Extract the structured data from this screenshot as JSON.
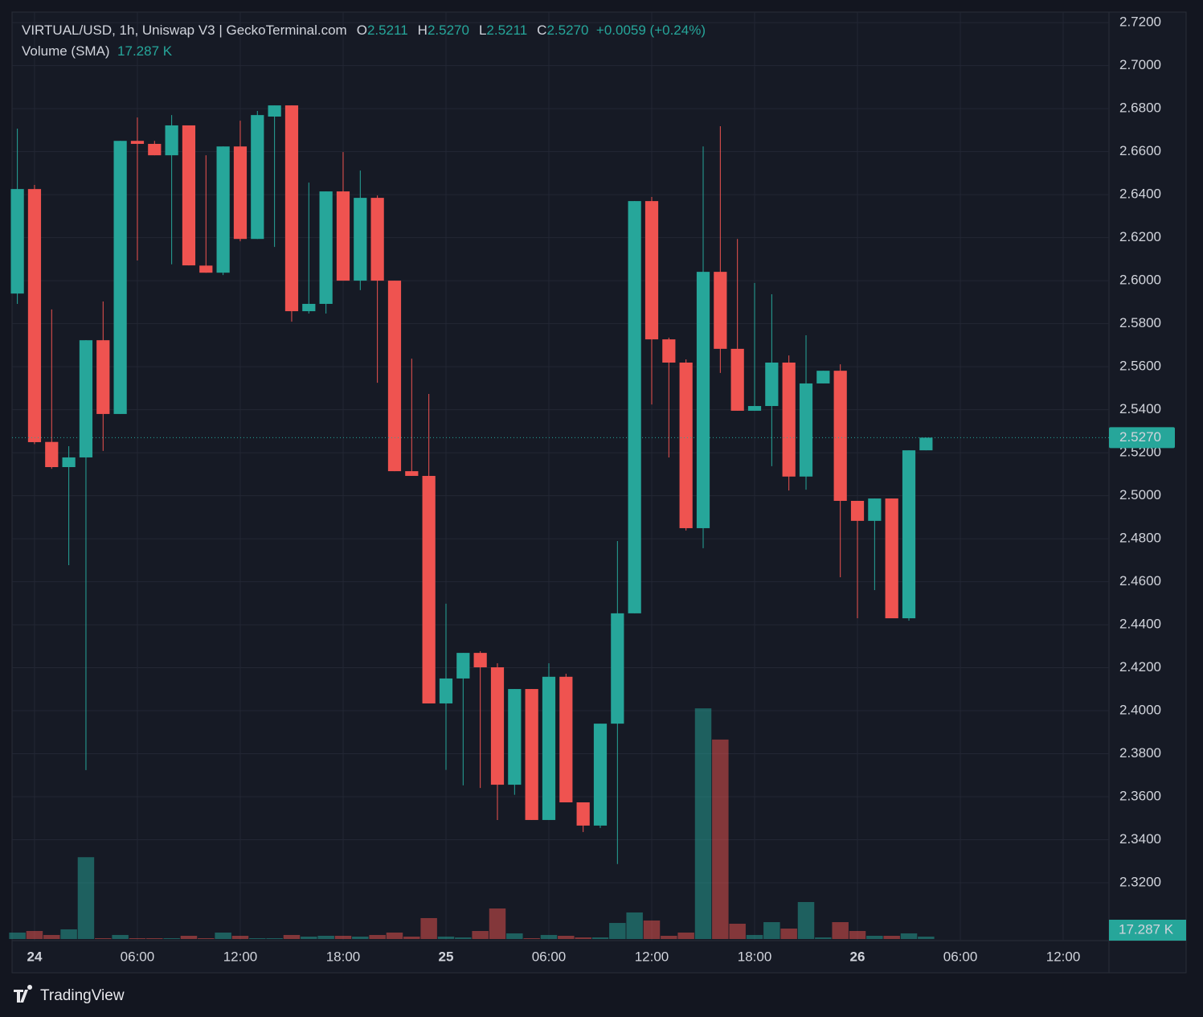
{
  "chart_data": {
    "type": "candlestick",
    "header": {
      "symbol": "VIRTUAL/USD, 1h, Uniswap V3 | GeckoTerminal.com",
      "ohlc": [
        {
          "key": "O",
          "value": "2.5211"
        },
        {
          "key": "H",
          "value": "2.5270"
        },
        {
          "key": "L",
          "value": "2.5211"
        },
        {
          "key": "C",
          "value": "2.5270"
        }
      ],
      "change": "+0.0059 (+0.24%)",
      "volume_title": "Volume (SMA)"
    },
    "brand": "TradingView",
    "up_color": "#26a69a",
    "down_color": "#ef5350",
    "x": [
      -1,
      0,
      1,
      2,
      3,
      4,
      5,
      6,
      7,
      8,
      9,
      10,
      11,
      12,
      13,
      14,
      15,
      16,
      17,
      18,
      19,
      20,
      21,
      22,
      23,
      24,
      25,
      26,
      27,
      28,
      29,
      30,
      31,
      32,
      33,
      34,
      35,
      36,
      37,
      38,
      39,
      40,
      41,
      42,
      43,
      44,
      45,
      46,
      47,
      48,
      49,
      50,
      51,
      52
    ],
    "open": [
      2.594,
      2.6426,
      2.525,
      2.5133,
      2.5178,
      2.5723,
      2.538,
      2.665,
      2.6636,
      2.6583,
      2.6722,
      2.607,
      2.6037,
      2.6624,
      2.6194,
      2.6763,
      2.6815,
      2.5858,
      2.5892,
      2.6415,
      2.6,
      2.6385,
      2.6,
      2.5114,
      2.5092,
      2.4034,
      2.415,
      2.4269,
      2.4202,
      2.3656,
      2.4101,
      2.3492,
      2.4158,
      2.3574,
      2.3466,
      2.394,
      2.4453,
      2.637,
      2.5727,
      2.5619,
      2.4849,
      2.6041,
      2.5683,
      2.5395,
      2.5417,
      2.5619,
      2.5089,
      2.5522,
      2.5581,
      2.4976,
      2.4883,
      2.4987,
      2.443,
      2.5211
    ],
    "high": [
      2.6707,
      2.6445,
      2.5866,
      2.523,
      2.5723,
      2.5903,
      2.665,
      2.6759,
      2.665,
      2.677,
      2.6722,
      2.6583,
      2.6624,
      2.6744,
      2.6789,
      2.6815,
      2.6815,
      2.6456,
      2.6415,
      2.6598,
      2.6512,
      2.6396,
      2.6,
      2.5637,
      2.5473,
      2.4498,
      2.4269,
      2.4277,
      2.4221,
      2.4101,
      2.4101,
      2.4221,
      2.4172,
      2.3574,
      2.394,
      2.4789,
      2.637,
      2.6389,
      2.5735,
      2.5634,
      2.6624,
      2.6718,
      2.6194,
      2.5989,
      2.5937,
      2.5652,
      2.5746,
      2.5581,
      2.5611,
      2.4976,
      2.4987,
      2.4987,
      2.5211,
      2.527
    ],
    "low": [
      2.5892,
      2.524,
      2.5125,
      2.4677,
      2.3724,
      2.5208,
      2.538,
      2.6094,
      2.6583,
      2.6076,
      2.6071,
      2.6037,
      2.6026,
      2.6183,
      2.6194,
      2.6157,
      2.5809,
      2.5847,
      2.5847,
      2.6,
      2.5956,
      2.5525,
      2.5114,
      2.5092,
      2.4034,
      2.3725,
      2.3653,
      2.3641,
      2.3492,
      2.3609,
      2.3492,
      2.3492,
      2.3574,
      2.3436,
      2.3455,
      2.3287,
      2.4453,
      2.5424,
      2.5178,
      2.4838,
      2.4756,
      2.5571,
      2.5395,
      2.5395,
      2.5137,
      2.5024,
      2.5028,
      2.5522,
      2.4621,
      2.443,
      2.4561,
      2.443,
      2.4419,
      2.5211
    ],
    "close": [
      2.6426,
      2.5249,
      2.5133,
      2.5178,
      2.5723,
      2.538,
      2.665,
      2.6636,
      2.6583,
      2.6722,
      2.6071,
      2.6037,
      2.6624,
      2.6194,
      2.677,
      2.6815,
      2.5858,
      2.5892,
      2.6415,
      2.6,
      2.6385,
      2.6,
      2.5114,
      2.5092,
      2.4034,
      2.415,
      2.4269,
      2.4202,
      2.3656,
      2.4101,
      2.3492,
      2.4158,
      2.3574,
      2.3466,
      2.394,
      2.4453,
      2.637,
      2.5727,
      2.5619,
      2.4849,
      2.6041,
      2.5683,
      2.5395,
      2.5417,
      2.5619,
      2.5089,
      2.5522,
      2.5581,
      2.4976,
      2.4883,
      2.4987,
      2.443,
      2.5211,
      2.527
    ],
    "volume": [
      12.6,
      15.7,
      7.9,
      18.9,
      160,
      1.6,
      7.9,
      1.6,
      1.6,
      1.6,
      6.3,
      1.6,
      12.6,
      6.3,
      1.6,
      1.6,
      7.9,
      4.7,
      6.3,
      6.3,
      4.7,
      7.9,
      12.6,
      4.7,
      40.9,
      4.7,
      3.1,
      15.7,
      59.7,
      11,
      1.6,
      7.9,
      6.3,
      3.1,
      3.1,
      31.4,
      51.9,
      36.2,
      6.3,
      12.6,
      451,
      390,
      29.9,
      7.9,
      33,
      20.4,
      72.3,
      3.1,
      33,
      15.7,
      6.3,
      6.3,
      11,
      4.7
    ],
    "volume_ylim": [
      0,
      470
    ],
    "volume_sma": {
      "value": 17.287,
      "label": "17.287 K"
    },
    "last_price": {
      "value": 2.527,
      "label": "2.5270"
    },
    "xlim": [
      -1.31,
      62.67
    ],
    "xticks": [
      {
        "value": 0,
        "label": "24"
      },
      {
        "value": 6,
        "label": "06:00"
      },
      {
        "value": 12,
        "label": "12:00"
      },
      {
        "value": 18,
        "label": "18:00"
      },
      {
        "value": 24,
        "label": "25"
      },
      {
        "value": 30,
        "label": "06:00"
      },
      {
        "value": 36,
        "label": "12:00"
      },
      {
        "value": 42,
        "label": "18:00"
      },
      {
        "value": 48,
        "label": "26"
      },
      {
        "value": 54,
        "label": "06:00"
      },
      {
        "value": 60,
        "label": "12:00"
      }
    ],
    "ylim": [
      2.2931,
      2.7249
    ],
    "yticks": [
      {
        "value": 2.72,
        "label": "2.7200"
      },
      {
        "value": 2.7,
        "label": "2.7000"
      },
      {
        "value": 2.68,
        "label": "2.6800"
      },
      {
        "value": 2.66,
        "label": "2.6600"
      },
      {
        "value": 2.64,
        "label": "2.6400"
      },
      {
        "value": 2.62,
        "label": "2.6200"
      },
      {
        "value": 2.6,
        "label": "2.6000"
      },
      {
        "value": 2.58,
        "label": "2.5800"
      },
      {
        "value": 2.56,
        "label": "2.5600"
      },
      {
        "value": 2.54,
        "label": "2.5400"
      },
      {
        "value": 2.52,
        "label": "2.5200"
      },
      {
        "value": 2.5,
        "label": "2.5000"
      },
      {
        "value": 2.48,
        "label": "2.4800"
      },
      {
        "value": 2.46,
        "label": "2.4600"
      },
      {
        "value": 2.44,
        "label": "2.4400"
      },
      {
        "value": 2.42,
        "label": "2.4200"
      },
      {
        "value": 2.4,
        "label": "2.4000"
      },
      {
        "value": 2.38,
        "label": "2.3800"
      },
      {
        "value": 2.36,
        "label": "2.3600"
      },
      {
        "value": 2.34,
        "label": "2.3400"
      },
      {
        "value": 2.32,
        "label": "2.3200"
      }
    ],
    "grid": true
  }
}
